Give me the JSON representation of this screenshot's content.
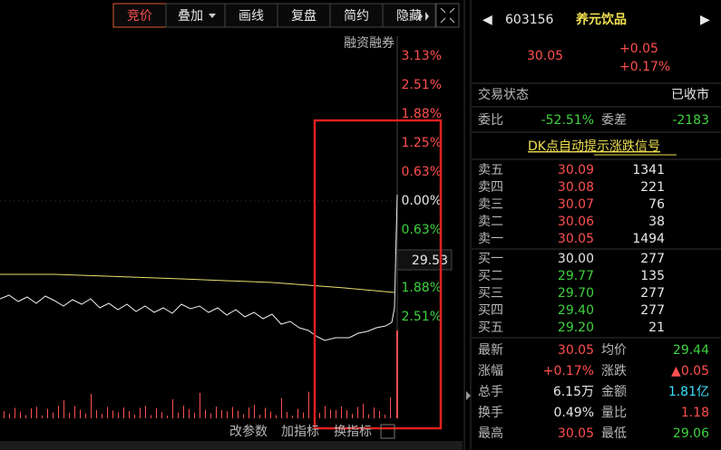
{
  "toolbar": {
    "buttons": [
      "竞价",
      "叠加",
      "画线",
      "复盘",
      "简约",
      "隐藏"
    ]
  },
  "chart": {
    "corner_label": "融资融券",
    "axis_labels": [
      "3.13%",
      "2.51%",
      "1.88%",
      "1.25%",
      "0.63%",
      "0.00%",
      "0.63%",
      "1.88%",
      "2.51%"
    ],
    "price_tag": "29.53",
    "bottom_buttons": [
      "改参数",
      "加指标",
      "换指标"
    ]
  },
  "quote": {
    "code": "603156",
    "name": "养元饮品",
    "price": "30.05",
    "change": "+0.05",
    "change_pct": "+0.17%",
    "status_label": "交易状态",
    "status": "已收市",
    "ratio_label": "委比",
    "ratio": "-52.51%",
    "diff_label": "委差",
    "diff": "-2183",
    "signal_link": "DK点自动提示涨跌信号",
    "sells": [
      [
        "卖五",
        "30.09",
        "1341"
      ],
      [
        "卖四",
        "30.08",
        "221"
      ],
      [
        "卖三",
        "30.07",
        "76"
      ],
      [
        "卖二",
        "30.06",
        "38"
      ],
      [
        "卖一",
        "30.05",
        "1494"
      ]
    ],
    "buys": [
      [
        "买一",
        "30.00",
        "277"
      ],
      [
        "买二",
        "29.77",
        "135"
      ],
      [
        "买三",
        "29.70",
        "277"
      ],
      [
        "买四",
        "29.40",
        "277"
      ],
      [
        "买五",
        "29.20",
        "21"
      ]
    ],
    "stats": [
      [
        "最新",
        "30.05",
        "均价",
        "29.44"
      ],
      [
        "涨幅",
        "+0.17%",
        "涨跌",
        "▲0.05"
      ],
      [
        "总手",
        "6.15万",
        "金额",
        "1.81亿"
      ],
      [
        "换手",
        "0.49%",
        "量比",
        "1.18"
      ],
      [
        "最高",
        "30.05",
        "最低",
        "29.06"
      ]
    ]
  }
}
